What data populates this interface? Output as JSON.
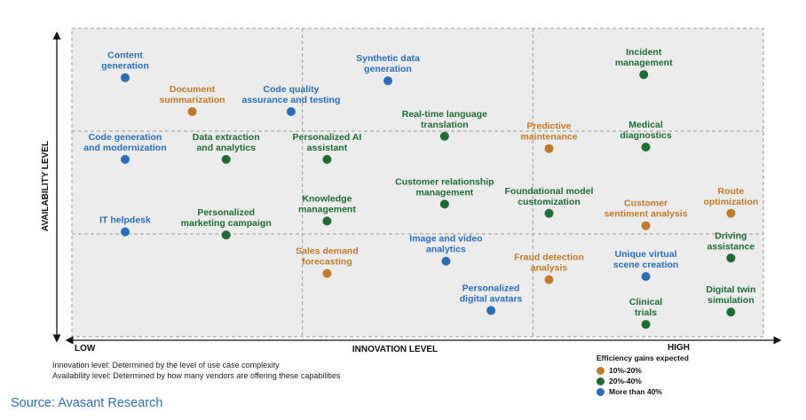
{
  "chart_data": {
    "type": "scatter",
    "xlabel": "INNOVATION LEVEL",
    "ylabel": "AVAILABILITY LEVEL",
    "x_low_label": "LOW",
    "x_high_label": "HIGH",
    "xlim": [
      0,
      100
    ],
    "ylim": [
      0,
      100
    ],
    "grid": "dashed 3x3",
    "legend": {
      "title": "Efficiency gains expected",
      "entries": [
        {
          "key": "orange",
          "label": "10%-20%",
          "color": "#c17a2a"
        },
        {
          "key": "green",
          "label": "20%-40%",
          "color": "#1e6b34"
        },
        {
          "key": "blue",
          "label": "More than 40%",
          "color": "#2a6ebb"
        }
      ]
    },
    "points": [
      {
        "label": [
          "Content",
          "generation"
        ],
        "x": 7.7,
        "y": 84,
        "cat": "blue"
      },
      {
        "label": [
          "Document",
          "summarization"
        ],
        "x": 17.4,
        "y": 73,
        "cat": "orange"
      },
      {
        "label": [
          "Code quality",
          "assurance and testing"
        ],
        "x": 31.7,
        "y": 73,
        "cat": "blue"
      },
      {
        "label": [
          "Synthetic data",
          "generation"
        ],
        "x": 45.7,
        "y": 83,
        "cat": "blue"
      },
      {
        "label": [
          "Incident",
          "management"
        ],
        "x": 82.7,
        "y": 85,
        "cat": "green"
      },
      {
        "label": [
          "Real-time language",
          "translation"
        ],
        "x": 53.9,
        "y": 65,
        "cat": "green"
      },
      {
        "label": [
          "Predictive",
          "maintenance"
        ],
        "x": 69,
        "y": 61,
        "cat": "orange"
      },
      {
        "label": [
          "Medical",
          "diagnostics"
        ],
        "x": 83,
        "y": 61.5,
        "cat": "green"
      },
      {
        "label": [
          "Code generation",
          "and modernization"
        ],
        "x": 7.7,
        "y": 57.5,
        "cat": "blue"
      },
      {
        "label": [
          "Data extraction",
          "and analytics"
        ],
        "x": 22.3,
        "y": 57.5,
        "cat": "green"
      },
      {
        "label": [
          "Personalized AI",
          "assistant"
        ],
        "x": 36.9,
        "y": 57.5,
        "cat": "green"
      },
      {
        "label": [
          "Customer relationship",
          "management"
        ],
        "x": 53.9,
        "y": 43,
        "cat": "green"
      },
      {
        "label": [
          "Foundational model",
          "customization"
        ],
        "x": 69,
        "y": 40,
        "cat": "green"
      },
      {
        "label": [
          "Route",
          "optimization"
        ],
        "x": 95.3,
        "y": 40,
        "cat": "orange"
      },
      {
        "label": [
          "Customer",
          "sentiment analysis"
        ],
        "x": 83,
        "y": 36,
        "cat": "orange"
      },
      {
        "label": [
          "Knowledge",
          "management"
        ],
        "x": 36.9,
        "y": 37.5,
        "cat": "green"
      },
      {
        "label": [
          "IT helpdesk"
        ],
        "x": 7.7,
        "y": 34,
        "cat": "blue"
      },
      {
        "label": [
          "Personalized",
          "marketing campaign"
        ],
        "x": 22.3,
        "y": 33,
        "cat": "green"
      },
      {
        "label": [
          "Driving",
          "assistance"
        ],
        "x": 95.3,
        "y": 25.5,
        "cat": "green"
      },
      {
        "label": [
          "Image and video",
          "analytics"
        ],
        "x": 54.1,
        "y": 24.5,
        "cat": "blue"
      },
      {
        "label": [
          "Sales demand",
          "forecasting"
        ],
        "x": 36.9,
        "y": 20.5,
        "cat": "orange"
      },
      {
        "label": [
          "Fraud detection",
          "analysis"
        ],
        "x": 69,
        "y": 18.5,
        "cat": "orange"
      },
      {
        "label": [
          "Unique virtual",
          "scene creation"
        ],
        "x": 83,
        "y": 19.5,
        "cat": "blue"
      },
      {
        "label": [
          "Personalized",
          "digital avatars"
        ],
        "x": 60.6,
        "y": 8.5,
        "cat": "blue"
      },
      {
        "label": [
          "Digital twin",
          "simulation"
        ],
        "x": 95.3,
        "y": 8,
        "cat": "green"
      },
      {
        "label": [
          "Clinical",
          "trials"
        ],
        "x": 83,
        "y": 4,
        "cat": "green"
      }
    ]
  },
  "notes": {
    "innovation": "Innovation level: Determined by the level of use case complexity",
    "availability": "Availability level: Determined by how many vendors are offering these capabilities"
  },
  "source": "Source: Avasant Research"
}
